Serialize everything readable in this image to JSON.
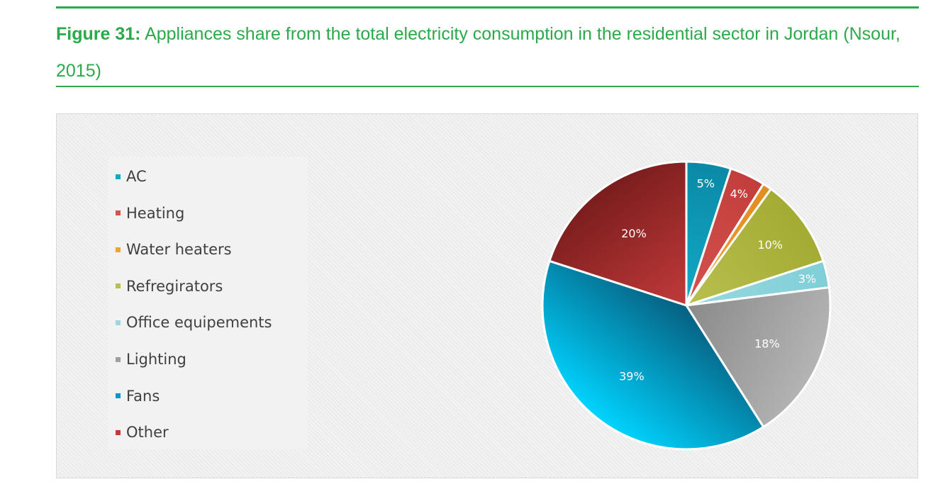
{
  "figure": {
    "label": "Figure 31:",
    "title": "Appliances share from the total electricity consumption in the residential sector in Jordan (Nsour, 2015)"
  },
  "chart_data": {
    "type": "pie",
    "legend_position": "left",
    "slices": [
      {
        "name": "AC",
        "value": 5,
        "label": "5%",
        "color": "#13a9c8",
        "light": "#22c4e6",
        "dark": "#0a89a6",
        "label_color": "#ffffff"
      },
      {
        "name": "Heating",
        "value": 4,
        "label": "4%",
        "color": "#d6524f",
        "light": "#e16b68",
        "dark": "#c23e3c",
        "label_color": "#ffffff"
      },
      {
        "name": "Water heaters",
        "value": 1,
        "label": "",
        "color": "#f2a235",
        "light": "#f7b54e",
        "dark": "#e08c1f",
        "label_color": "#ffffff"
      },
      {
        "name": "Refregirators",
        "value": 10,
        "label": "10%",
        "color": "#b9c04f",
        "light": "#d3d788",
        "dark": "#a3ab32",
        "label_color": "#ffffff"
      },
      {
        "name": "Office equipements",
        "value": 3,
        "label": "3%",
        "color": "#9ad8df",
        "light": "#b3e3e9",
        "dark": "#7fcfd8",
        "label_color": "#ffffff"
      },
      {
        "name": "Lighting",
        "value": 18,
        "label": "18%",
        "color": "#a0a0a0",
        "light": "#b4b4b4",
        "dark": "#8a8a8a",
        "label_color": "#ffffff"
      },
      {
        "name": "Fans",
        "value": 39,
        "label": "39%",
        "color": "#0b98c6",
        "light": "#00d4ff",
        "dark": "#065f80",
        "label_color": "#ffffff"
      },
      {
        "name": "Other",
        "value": 20,
        "label": "20%",
        "color": "#c23a3a",
        "light": "#d24f4f",
        "dark": "#7a1d1d",
        "label_color": "#ffffff"
      }
    ]
  }
}
